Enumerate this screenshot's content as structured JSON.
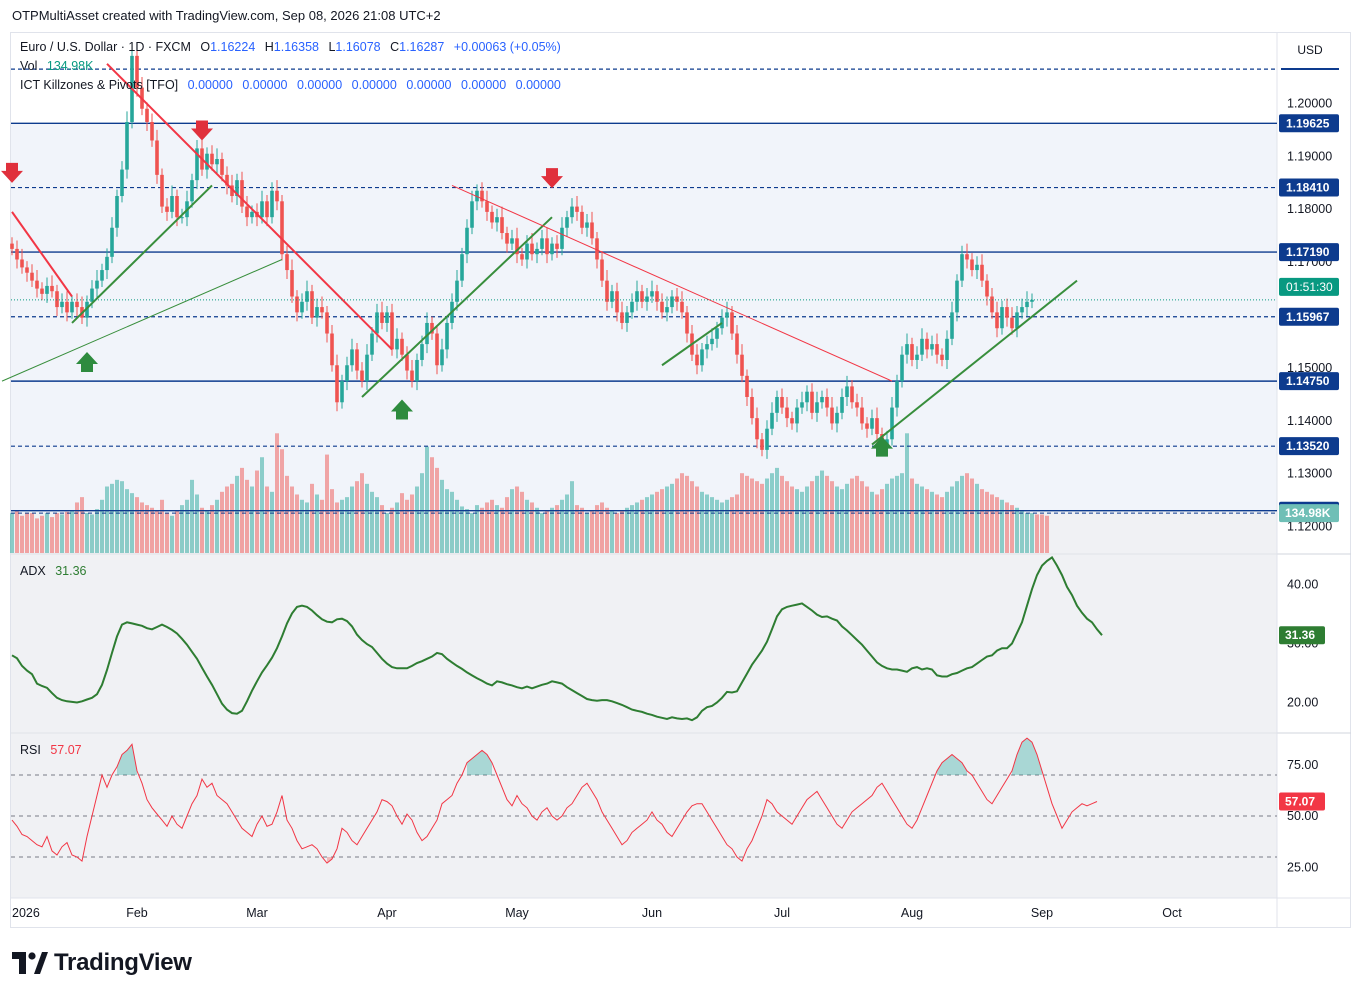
{
  "header": {
    "text": "OTPMultiAsset created with TradingView.com, Sep 08, 2026 21:08 UTC+2"
  },
  "legend": {
    "symbol": "Euro / U.S. Dollar · 1D · FXCM",
    "o_label": "O",
    "o": "1.16224",
    "h_label": "H",
    "h": "1.16358",
    "l_label": "L",
    "l": "1.16078",
    "c_label": "C",
    "c": "1.16287",
    "change": "+0.00063 (+0.05%)",
    "vol_label": "Vol",
    "vol": "134.98K",
    "ict_label": "ICT Killzones & Pivots [TFO]",
    "ict_values": [
      "0.00000",
      "0.00000",
      "0.00000",
      "0.00000",
      "0.00000",
      "0.00000",
      "0.00000"
    ],
    "adx_label": "ADX",
    "adx": "31.36",
    "rsi_label": "RSI",
    "rsi": "57.07"
  },
  "currency_button": "USD",
  "footer": {
    "brand": "TradingView"
  },
  "colors": {
    "up": "#26a69a",
    "down": "#ef5350",
    "level": "#0d3b8e",
    "trend_red": "#f23645",
    "trend_green": "#388e3c",
    "adx": "#2e7d32",
    "rsi": "#f23645"
  },
  "chart_data": [
    {
      "type": "candlestick",
      "title": "Euro / U.S. Dollar · 1D · FXCM",
      "x_ticks": [
        "2026",
        "Feb",
        "Mar",
        "Apr",
        "May",
        "Jun",
        "Jul",
        "Aug",
        "Sep",
        "Oct"
      ],
      "y_ticks": [
        "1.20000",
        "1.19000",
        "1.18000",
        "1.17000",
        "1.15000",
        "1.14000",
        "1.13000",
        "1.12000"
      ],
      "ylim": [
        1.115,
        1.212
      ],
      "levels": [
        {
          "label": "1.19625",
          "value": 1.19625,
          "style": "solid"
        },
        {
          "label": "1.18410",
          "value": 1.1841,
          "style": "dashed"
        },
        {
          "label": "1.17190",
          "value": 1.1719,
          "style": "solid"
        },
        {
          "label": "1.15967",
          "value": 1.15967,
          "style": "dashed"
        },
        {
          "label": "1.14750",
          "value": 1.1475,
          "style": "solid"
        },
        {
          "label": "1.13520",
          "value": 1.1352,
          "style": "dashed"
        },
        {
          "label": "1.12300",
          "value": 1.123,
          "style": "solid"
        }
      ],
      "top_dashed_level": 1.2065,
      "current_price": 1.16287,
      "countdown": "01:51:30",
      "closes": [
        1.1725,
        1.1705,
        1.169,
        1.168,
        1.1665,
        1.165,
        1.164,
        1.1655,
        1.1645,
        1.1615,
        1.1625,
        1.1605,
        1.1625,
        1.1615,
        1.1595,
        1.1625,
        1.165,
        1.1665,
        1.1685,
        1.171,
        1.1765,
        1.1825,
        1.1875,
        1.1965,
        1.209,
        1.203,
        1.199,
        1.1965,
        1.193,
        1.1865,
        1.1805,
        1.1795,
        1.1825,
        1.1785,
        1.1785,
        1.1815,
        1.1855,
        1.1915,
        1.1875,
        1.1905,
        1.1885,
        1.1895,
        1.1865,
        1.1845,
        1.1825,
        1.1855,
        1.1805,
        1.1785,
        1.1795,
        1.1785,
        1.1815,
        1.1785,
        1.1835,
        1.1815,
        1.1715,
        1.1685,
        1.1635,
        1.1605,
        1.1625,
        1.1645,
        1.1595,
        1.1615,
        1.1605,
        1.1565,
        1.1505,
        1.1435,
        1.1475,
        1.1505,
        1.1535,
        1.1495,
        1.1475,
        1.1525,
        1.1565,
        1.1605,
        1.1585,
        1.1605,
        1.1535,
        1.1555,
        1.1525,
        1.1495,
        1.1475,
        1.1515,
        1.1545,
        1.1585,
        1.1565,
        1.1505,
        1.1535,
        1.1585,
        1.1625,
        1.1665,
        1.1715,
        1.1765,
        1.1815,
        1.1835,
        1.1815,
        1.1795,
        1.1775,
        1.1785,
        1.1755,
        1.1735,
        1.1745,
        1.1715,
        1.1705,
        1.1735,
        1.1715,
        1.1725,
        1.1745,
        1.1715,
        1.1735,
        1.1725,
        1.1765,
        1.1785,
        1.1805,
        1.1795,
        1.1765,
        1.1775,
        1.1745,
        1.1705,
        1.1665,
        1.1625,
        1.1645,
        1.1605,
        1.1585,
        1.1605,
        1.1625,
        1.1645,
        1.1625,
        1.1635,
        1.1645,
        1.1625,
        1.1605,
        1.1615,
        1.1635,
        1.1625,
        1.1605,
        1.1565,
        1.1525,
        1.1505,
        1.1535,
        1.1545,
        1.1555,
        1.1575,
        1.1595,
        1.1605,
        1.1565,
        1.1525,
        1.1485,
        1.1445,
        1.1405,
        1.1365,
        1.1345,
        1.1385,
        1.1415,
        1.1445,
        1.1425,
        1.1405,
        1.1395,
        1.1425,
        1.1435,
        1.1455,
        1.1415,
        1.1435,
        1.1445,
        1.1425,
        1.1395,
        1.1415,
        1.1445,
        1.1465,
        1.1435,
        1.1425,
        1.1395,
        1.1385,
        1.1405,
        1.1375,
        1.1355,
        1.1365,
        1.1425,
        1.1475,
        1.1525,
        1.1545,
        1.1515,
        1.1525,
        1.1555,
        1.1535,
        1.1545,
        1.1525,
        1.1515,
        1.1555,
        1.1605,
        1.1665,
        1.1715,
        1.1705,
        1.1685,
        1.1695,
        1.1665,
        1.1635,
        1.1605,
        1.1575,
        1.1615,
        1.1595,
        1.1575,
        1.1605,
        1.1615,
        1.1625,
        1.16287
      ],
      "volume_label": "134.98K",
      "volumes": [
        0.3,
        0.32,
        0.28,
        0.3,
        0.3,
        0.26,
        0.28,
        0.3,
        0.27,
        0.3,
        0.29,
        0.31,
        0.32,
        0.38,
        0.42,
        0.3,
        0.29,
        0.33,
        0.4,
        0.5,
        0.52,
        0.55,
        0.54,
        0.48,
        0.45,
        0.42,
        0.38,
        0.36,
        0.34,
        0.32,
        0.4,
        0.3,
        0.28,
        0.32,
        0.36,
        0.4,
        0.55,
        0.44,
        0.34,
        0.32,
        0.36,
        0.4,
        0.46,
        0.5,
        0.52,
        0.58,
        0.64,
        0.55,
        0.5,
        0.62,
        0.72,
        0.5,
        0.46,
        0.9,
        0.78,
        0.58,
        0.5,
        0.44,
        0.4,
        0.38,
        0.52,
        0.44,
        0.4,
        0.74,
        0.48,
        0.38,
        0.4,
        0.42,
        0.5,
        0.54,
        0.6,
        0.52,
        0.46,
        0.42,
        0.36,
        0.3,
        0.34,
        0.38,
        0.45,
        0.4,
        0.44,
        0.5,
        0.6,
        0.8,
        0.72,
        0.64,
        0.55,
        0.48,
        0.46,
        0.4,
        0.35,
        0.33,
        0.3,
        0.36,
        0.34,
        0.38,
        0.4,
        0.36,
        0.34,
        0.42,
        0.48,
        0.5,
        0.46,
        0.4,
        0.38,
        0.34,
        0.3,
        0.32,
        0.34,
        0.36,
        0.4,
        0.44,
        0.54,
        0.36,
        0.34,
        0.3,
        0.32,
        0.36,
        0.38,
        0.34,
        0.32,
        0.3,
        0.32,
        0.34,
        0.36,
        0.38,
        0.4,
        0.42,
        0.44,
        0.46,
        0.48,
        0.5,
        0.52,
        0.56,
        0.6,
        0.58,
        0.54,
        0.5,
        0.46,
        0.44,
        0.42,
        0.4,
        0.38,
        0.4,
        0.42,
        0.44,
        0.6,
        0.58,
        0.56,
        0.54,
        0.52,
        0.56,
        0.6,
        0.64,
        0.58,
        0.54,
        0.5,
        0.48,
        0.46,
        0.5,
        0.54,
        0.58,
        0.62,
        0.58,
        0.54,
        0.5,
        0.48,
        0.52,
        0.56,
        0.58,
        0.54,
        0.5,
        0.46,
        0.44,
        0.48,
        0.52,
        0.56,
        0.58,
        0.6,
        0.9,
        0.56,
        0.52,
        0.5,
        0.48,
        0.46,
        0.44,
        0.42,
        0.46,
        0.5,
        0.54,
        0.58,
        0.6,
        0.56,
        0.52,
        0.48,
        0.46,
        0.44,
        0.42,
        0.4,
        0.38,
        0.36,
        0.34,
        0.32,
        0.3,
        0.3,
        0.29,
        0.29,
        0.28
      ],
      "volume_ylim": [
        0,
        1
      ],
      "trend_lines": [
        {
          "color": "red",
          "from": [
            0,
            1.1795
          ],
          "to": [
            12,
            1.1635
          ]
        },
        {
          "color": "green",
          "from": [
            12,
            1.1585
          ],
          "to": [
            40,
            1.1845
          ]
        },
        {
          "color": "red",
          "from": [
            19,
            1.2075
          ],
          "to": [
            76,
            1.1535
          ]
        },
        {
          "color": "green",
          "from": [
            -2,
            1.1475
          ],
          "to": [
            54,
            1.1705
          ]
        },
        {
          "color": "green",
          "from": [
            70,
            1.1445
          ],
          "to": [
            108,
            1.1785
          ]
        },
        {
          "color": "red",
          "from": [
            88,
            1.1845
          ],
          "to": [
            176,
            1.1475
          ]
        },
        {
          "color": "green",
          "from": [
            130,
            1.1505
          ],
          "to": [
            142,
            1.1585
          ]
        },
        {
          "color": "green",
          "from": [
            172,
            1.1355
          ],
          "to": [
            213,
            1.1665
          ]
        }
      ],
      "arrows_down": [
        [
          0,
          1.1865
        ],
        [
          38,
          1.1945
        ],
        [
          108,
          1.1855
        ]
      ],
      "arrows_up": [
        [
          15,
          1.1515
        ],
        [
          78,
          1.1425
        ],
        [
          174,
          1.1355
        ]
      ]
    },
    {
      "type": "line",
      "title": "ADX",
      "value_label": "31.36",
      "y_ticks": [
        "40.00",
        "30.00",
        "20.00"
      ],
      "ylim": [
        15,
        45
      ],
      "values": [
        28,
        27.5,
        26.2,
        25.4,
        24.8,
        23.2,
        22.8,
        22.5,
        21.6,
        20.8,
        20.4,
        20.2,
        20.1,
        20.0,
        20.2,
        20.5,
        20.8,
        21.4,
        23.0,
        25.5,
        28.4,
        31.2,
        33.2,
        33.6,
        33.4,
        33.2,
        33.0,
        32.6,
        32.4,
        32.8,
        33.2,
        32.8,
        32.3,
        31.7,
        30.8,
        29.8,
        28.6,
        27.4,
        25.9,
        24.4,
        23.0,
        21.4,
        19.8,
        18.8,
        18.2,
        18.1,
        18.6,
        20.2,
        22.0,
        23.6,
        25.1,
        26.3,
        27.6,
        29.2,
        31.2,
        33.4,
        35.1,
        36.2,
        36.4,
        36.2,
        35.6,
        34.8,
        34.1,
        33.7,
        33.6,
        34.1,
        34.2,
        33.8,
        32.9,
        31.5,
        30.6,
        29.9,
        29.4,
        28.4,
        27.4,
        26.6,
        26.0,
        25.8,
        25.8,
        25.8,
        26.2,
        26.7,
        27.0,
        27.4,
        27.8,
        28.4,
        28.2,
        27.4,
        26.8,
        26.2,
        25.7,
        25.1,
        24.6,
        24.1,
        23.7,
        23.2,
        22.9,
        23.6,
        23.4,
        23.1,
        22.9,
        22.6,
        22.4,
        22.7,
        22.4,
        22.7,
        23.0,
        23.2,
        23.6,
        23.4,
        23.2,
        22.6,
        22.1,
        21.6,
        21.1,
        20.6,
        20.4,
        20.3,
        20.4,
        20.4,
        20.2,
        19.9,
        19.6,
        19.2,
        18.8,
        18.6,
        18.4,
        18.1,
        17.9,
        17.6,
        17.4,
        17.2,
        17.5,
        17.3,
        17.2,
        17.3,
        17.0,
        17.5,
        18.6,
        19.2,
        19.4,
        20.0,
        20.8,
        21.8,
        21.7,
        21.9,
        23.4,
        24.9,
        26.4,
        27.6,
        28.8,
        30.3,
        32.4,
        34.6,
        35.8,
        36.2,
        36.4,
        36.6,
        36.8,
        36.2,
        35.6,
        34.9,
        34.5,
        34.6,
        34.2,
        33.9,
        32.9,
        32.2,
        31.4,
        30.6,
        29.8,
        28.8,
        27.8,
        26.8,
        26.2,
        25.8,
        25.6,
        25.6,
        25.4,
        25.2,
        25.8,
        26.0,
        25.6,
        25.8,
        25.6,
        24.6,
        24.4,
        24.4,
        24.8,
        25.0,
        25.4,
        25.8,
        26.0,
        26.6,
        27.2,
        27.8,
        28.0,
        28.8,
        29.2,
        29.2,
        30.0,
        31.8,
        33.6,
        36.4,
        39.2,
        41.6,
        43.2,
        44.0,
        44.6,
        43.2,
        41.6,
        39.6,
        38.2,
        36.4,
        35.2,
        34.2,
        33.6,
        32.4,
        31.4
      ],
      "pane_range": [
        0,
        1,
        2
      ]
    },
    {
      "type": "line",
      "title": "RSI",
      "value_label": "57.07",
      "y_ticks": [
        "75.00",
        "50.00",
        "25.00"
      ],
      "ylim": [
        10,
        90
      ],
      "bands": [
        70,
        50,
        30
      ],
      "values": [
        48,
        45,
        41,
        40,
        38,
        36,
        35,
        40,
        33,
        31,
        35,
        37,
        31,
        30,
        28,
        40,
        50,
        60,
        70,
        64,
        70,
        74,
        80,
        82,
        85,
        72,
        66,
        58,
        54,
        51,
        48,
        45,
        50,
        46,
        44,
        50,
        56,
        60,
        68,
        64,
        66,
        60,
        58,
        56,
        52,
        48,
        44,
        42,
        40,
        46,
        50,
        45,
        46,
        52,
        60,
        48,
        44,
        38,
        34,
        35,
        36,
        34,
        30,
        27,
        29,
        34,
        44,
        42,
        38,
        36,
        40,
        44,
        48,
        52,
        58,
        57,
        55,
        50,
        46,
        51,
        48,
        42,
        38,
        40,
        44,
        48,
        56,
        58,
        60,
        66,
        70,
        76,
        78,
        80,
        82,
        80,
        76,
        70,
        64,
        58,
        55,
        60,
        56,
        54,
        50,
        48,
        52,
        54,
        50,
        48,
        50,
        54,
        56,
        60,
        64,
        66,
        62,
        58,
        52,
        48,
        44,
        40,
        36,
        38,
        42,
        44,
        46,
        48,
        52,
        48,
        46,
        42,
        40,
        44,
        48,
        52,
        55,
        56,
        56,
        52,
        48,
        44,
        40,
        36,
        34,
        30,
        28,
        34,
        38,
        44,
        50,
        58,
        56,
        52,
        50,
        48,
        46,
        50,
        54,
        58,
        60,
        62,
        58,
        54,
        50,
        46,
        44,
        48,
        52,
        54,
        56,
        58,
        60,
        64,
        66,
        62,
        58,
        54,
        50,
        46,
        44,
        48,
        54,
        60,
        66,
        72,
        76,
        78,
        80,
        78,
        76,
        72,
        70,
        66,
        62,
        58,
        56,
        60,
        64,
        68,
        72,
        80,
        86,
        88,
        86,
        80,
        72,
        64,
        56,
        50,
        44,
        48,
        52,
        54,
        56,
        55,
        56,
        57.07
      ],
      "pane_range": [
        2
      ]
    }
  ]
}
